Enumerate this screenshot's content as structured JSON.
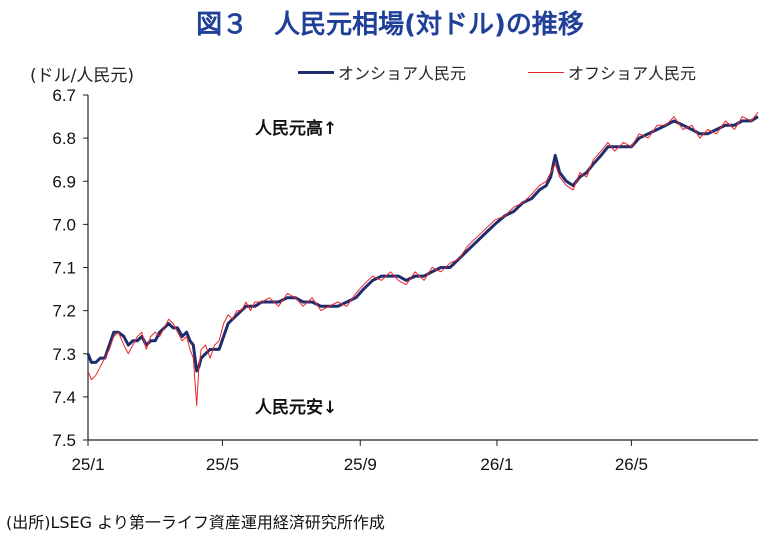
{
  "title": "図３　人民元相場(対ドル)の推移",
  "unit_label": "(ドル/人民元)",
  "source": "(出所)LSEG より第一ライフ資産運用経済研究所作成",
  "legend": {
    "onshore": "オンショア人民元",
    "offshore": "オフショア人民元"
  },
  "annotations": {
    "up": "人民元高↑",
    "down": "人民元安↓"
  },
  "colors": {
    "onshore": "#1f2d6e",
    "offshore": "#e8262b",
    "title": "#1f3f99"
  },
  "chart_data": {
    "type": "line",
    "title": "図３　人民元相場(対ドル)の推移",
    "ylabel": "(ドル/人民元)",
    "xlabel": "",
    "y_inverted": true,
    "ylim": [
      6.7,
      7.5
    ],
    "y_ticks": [
      "6.7",
      "6.8",
      "6.9",
      "7.0",
      "7.1",
      "7.2",
      "7.3",
      "7.4",
      "7.5"
    ],
    "x_ticks": [
      "25/1",
      "25/5",
      "25/9",
      "26/1",
      "26/5"
    ],
    "x_tick_dates": [
      "2025-01-01",
      "2025-05-01",
      "2025-09-01",
      "2026-01-01",
      "2026-05-01"
    ],
    "x_range": [
      "2025-01-01",
      "2026-08-22"
    ],
    "series": [
      {
        "name": "オンショア人民元",
        "points": [
          [
            "2025-01-01",
            7.3
          ],
          [
            "2025-01-04",
            7.32
          ],
          [
            "2025-01-08",
            7.32
          ],
          [
            "2025-01-12",
            7.31
          ],
          [
            "2025-01-16",
            7.31
          ],
          [
            "2025-01-20",
            7.28
          ],
          [
            "2025-01-24",
            7.25
          ],
          [
            "2025-01-28",
            7.25
          ],
          [
            "2025-02-02",
            7.26
          ],
          [
            "2025-02-06",
            7.28
          ],
          [
            "2025-02-10",
            7.27
          ],
          [
            "2025-02-14",
            7.27
          ],
          [
            "2025-02-18",
            7.26
          ],
          [
            "2025-02-22",
            7.28
          ],
          [
            "2025-02-26",
            7.27
          ],
          [
            "2025-03-02",
            7.27
          ],
          [
            "2025-03-06",
            7.25
          ],
          [
            "2025-03-10",
            7.24
          ],
          [
            "2025-03-14",
            7.23
          ],
          [
            "2025-03-18",
            7.24
          ],
          [
            "2025-03-22",
            7.24
          ],
          [
            "2025-03-26",
            7.26
          ],
          [
            "2025-03-30",
            7.25
          ],
          [
            "2025-04-02",
            7.27
          ],
          [
            "2025-04-05",
            7.28
          ],
          [
            "2025-04-08",
            7.34
          ],
          [
            "2025-04-10",
            7.33
          ],
          [
            "2025-04-12",
            7.31
          ],
          [
            "2025-04-16",
            7.3
          ],
          [
            "2025-04-20",
            7.29
          ],
          [
            "2025-04-24",
            7.29
          ],
          [
            "2025-04-28",
            7.29
          ],
          [
            "2025-05-02",
            7.26
          ],
          [
            "2025-05-06",
            7.23
          ],
          [
            "2025-05-10",
            7.22
          ],
          [
            "2025-05-14",
            7.21
          ],
          [
            "2025-05-18",
            7.2
          ],
          [
            "2025-05-22",
            7.19
          ],
          [
            "2025-05-26",
            7.19
          ],
          [
            "2025-05-30",
            7.19
          ],
          [
            "2025-06-05",
            7.18
          ],
          [
            "2025-06-12",
            7.18
          ],
          [
            "2025-06-20",
            7.18
          ],
          [
            "2025-06-28",
            7.17
          ],
          [
            "2025-07-05",
            7.17
          ],
          [
            "2025-07-12",
            7.18
          ],
          [
            "2025-07-20",
            7.18
          ],
          [
            "2025-07-28",
            7.19
          ],
          [
            "2025-08-04",
            7.19
          ],
          [
            "2025-08-12",
            7.19
          ],
          [
            "2025-08-20",
            7.18
          ],
          [
            "2025-08-28",
            7.17
          ],
          [
            "2025-09-04",
            7.15
          ],
          [
            "2025-09-12",
            7.13
          ],
          [
            "2025-09-20",
            7.12
          ],
          [
            "2025-09-28",
            7.12
          ],
          [
            "2025-10-05",
            7.12
          ],
          [
            "2025-10-12",
            7.13
          ],
          [
            "2025-10-20",
            7.12
          ],
          [
            "2025-10-28",
            7.12
          ],
          [
            "2025-11-04",
            7.11
          ],
          [
            "2025-11-12",
            7.1
          ],
          [
            "2025-11-20",
            7.1
          ],
          [
            "2025-11-28",
            7.08
          ],
          [
            "2025-12-06",
            7.06
          ],
          [
            "2025-12-14",
            7.04
          ],
          [
            "2025-12-22",
            7.02
          ],
          [
            "2025-12-30",
            7.0
          ],
          [
            "2026-01-08",
            6.98
          ],
          [
            "2026-01-16",
            6.97
          ],
          [
            "2026-01-24",
            6.95
          ],
          [
            "2026-02-01",
            6.94
          ],
          [
            "2026-02-08",
            6.92
          ],
          [
            "2026-02-14",
            6.91
          ],
          [
            "2026-02-18",
            6.89
          ],
          [
            "2026-02-22",
            6.84
          ],
          [
            "2026-02-26",
            6.88
          ],
          [
            "2026-03-04",
            6.9
          ],
          [
            "2026-03-10",
            6.91
          ],
          [
            "2026-03-16",
            6.89
          ],
          [
            "2026-03-22",
            6.88
          ],
          [
            "2026-03-28",
            6.86
          ],
          [
            "2026-04-04",
            6.84
          ],
          [
            "2026-04-10",
            6.82
          ],
          [
            "2026-04-16",
            6.82
          ],
          [
            "2026-04-24",
            6.82
          ],
          [
            "2026-05-01",
            6.82
          ],
          [
            "2026-05-08",
            6.8
          ],
          [
            "2026-05-16",
            6.79
          ],
          [
            "2026-05-24",
            6.78
          ],
          [
            "2026-06-01",
            6.77
          ],
          [
            "2026-06-08",
            6.76
          ],
          [
            "2026-06-16",
            6.77
          ],
          [
            "2026-06-24",
            6.78
          ],
          [
            "2026-07-01",
            6.79
          ],
          [
            "2026-07-08",
            6.79
          ],
          [
            "2026-07-16",
            6.78
          ],
          [
            "2026-07-24",
            6.77
          ],
          [
            "2026-08-01",
            6.77
          ],
          [
            "2026-08-08",
            6.76
          ],
          [
            "2026-08-16",
            6.76
          ],
          [
            "2026-08-22",
            6.75
          ]
        ]
      },
      {
        "name": "オフショア人民元",
        "points": [
          [
            "2025-01-01",
            7.34
          ],
          [
            "2025-01-04",
            7.36
          ],
          [
            "2025-01-08",
            7.35
          ],
          [
            "2025-01-12",
            7.33
          ],
          [
            "2025-01-16",
            7.31
          ],
          [
            "2025-01-20",
            7.29
          ],
          [
            "2025-01-24",
            7.26
          ],
          [
            "2025-01-28",
            7.25
          ],
          [
            "2025-02-02",
            7.28
          ],
          [
            "2025-02-06",
            7.3
          ],
          [
            "2025-02-10",
            7.28
          ],
          [
            "2025-02-14",
            7.26
          ],
          [
            "2025-02-18",
            7.25
          ],
          [
            "2025-02-22",
            7.29
          ],
          [
            "2025-02-26",
            7.26
          ],
          [
            "2025-03-02",
            7.25
          ],
          [
            "2025-03-06",
            7.26
          ],
          [
            "2025-03-10",
            7.24
          ],
          [
            "2025-03-14",
            7.22
          ],
          [
            "2025-03-18",
            7.23
          ],
          [
            "2025-03-22",
            7.25
          ],
          [
            "2025-03-26",
            7.27
          ],
          [
            "2025-03-30",
            7.26
          ],
          [
            "2025-04-02",
            7.29
          ],
          [
            "2025-04-05",
            7.31
          ],
          [
            "2025-04-08",
            7.42
          ],
          [
            "2025-04-10",
            7.33
          ],
          [
            "2025-04-12",
            7.29
          ],
          [
            "2025-04-16",
            7.28
          ],
          [
            "2025-04-20",
            7.31
          ],
          [
            "2025-04-24",
            7.28
          ],
          [
            "2025-04-28",
            7.27
          ],
          [
            "2025-05-02",
            7.23
          ],
          [
            "2025-05-06",
            7.21
          ],
          [
            "2025-05-10",
            7.22
          ],
          [
            "2025-05-14",
            7.2
          ],
          [
            "2025-05-18",
            7.2
          ],
          [
            "2025-05-22",
            7.18
          ],
          [
            "2025-05-26",
            7.2
          ],
          [
            "2025-05-30",
            7.18
          ],
          [
            "2025-06-05",
            7.18
          ],
          [
            "2025-06-12",
            7.17
          ],
          [
            "2025-06-20",
            7.19
          ],
          [
            "2025-06-28",
            7.16
          ],
          [
            "2025-07-05",
            7.17
          ],
          [
            "2025-07-12",
            7.19
          ],
          [
            "2025-07-20",
            7.17
          ],
          [
            "2025-07-28",
            7.2
          ],
          [
            "2025-08-04",
            7.19
          ],
          [
            "2025-08-12",
            7.18
          ],
          [
            "2025-08-20",
            7.19
          ],
          [
            "2025-08-28",
            7.16
          ],
          [
            "2025-09-04",
            7.14
          ],
          [
            "2025-09-12",
            7.12
          ],
          [
            "2025-09-20",
            7.13
          ],
          [
            "2025-09-28",
            7.11
          ],
          [
            "2025-10-05",
            7.13
          ],
          [
            "2025-10-12",
            7.14
          ],
          [
            "2025-10-20",
            7.11
          ],
          [
            "2025-10-28",
            7.13
          ],
          [
            "2025-11-04",
            7.1
          ],
          [
            "2025-11-12",
            7.11
          ],
          [
            "2025-11-20",
            7.09
          ],
          [
            "2025-11-28",
            7.08
          ],
          [
            "2025-12-06",
            7.05
          ],
          [
            "2025-12-14",
            7.03
          ],
          [
            "2025-12-22",
            7.01
          ],
          [
            "2025-12-30",
            6.99
          ],
          [
            "2026-01-08",
            6.98
          ],
          [
            "2026-01-16",
            6.96
          ],
          [
            "2026-01-24",
            6.95
          ],
          [
            "2026-02-01",
            6.93
          ],
          [
            "2026-02-08",
            6.91
          ],
          [
            "2026-02-14",
            6.9
          ],
          [
            "2026-02-18",
            6.88
          ],
          [
            "2026-02-22",
            6.86
          ],
          [
            "2026-02-26",
            6.89
          ],
          [
            "2026-03-04",
            6.91
          ],
          [
            "2026-03-10",
            6.92
          ],
          [
            "2026-03-16",
            6.88
          ],
          [
            "2026-03-22",
            6.89
          ],
          [
            "2026-03-28",
            6.85
          ],
          [
            "2026-04-04",
            6.83
          ],
          [
            "2026-04-10",
            6.81
          ],
          [
            "2026-04-16",
            6.83
          ],
          [
            "2026-04-24",
            6.81
          ],
          [
            "2026-05-01",
            6.82
          ],
          [
            "2026-05-08",
            6.79
          ],
          [
            "2026-05-16",
            6.8
          ],
          [
            "2026-05-24",
            6.77
          ],
          [
            "2026-06-01",
            6.77
          ],
          [
            "2026-06-08",
            6.75
          ],
          [
            "2026-06-16",
            6.78
          ],
          [
            "2026-06-24",
            6.77
          ],
          [
            "2026-07-01",
            6.8
          ],
          [
            "2026-07-08",
            6.78
          ],
          [
            "2026-07-16",
            6.79
          ],
          [
            "2026-07-24",
            6.76
          ],
          [
            "2026-08-01",
            6.78
          ],
          [
            "2026-08-08",
            6.75
          ],
          [
            "2026-08-16",
            6.76
          ],
          [
            "2026-08-22",
            6.74
          ]
        ]
      }
    ]
  }
}
